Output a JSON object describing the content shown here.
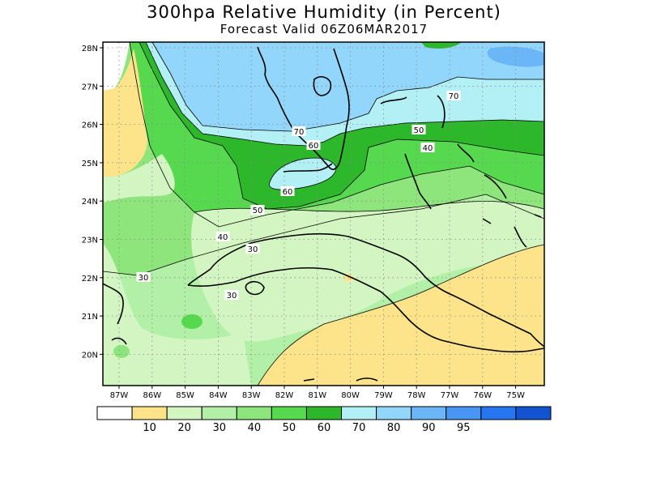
{
  "title": "300hpa Relative Humidity (in Percent)",
  "subtitle": "Forecast Valid  06Z06MAR2017",
  "lat_labels": [
    "28N",
    "27N",
    "26N",
    "25N",
    "24N",
    "23N",
    "22N",
    "21N",
    "20N"
  ],
  "lon_labels": [
    "87W",
    "86W",
    "85W",
    "84W",
    "83W",
    "82W",
    "81W",
    "80W",
    "79W",
    "78W",
    "77W",
    "76W",
    "75W"
  ],
  "contour_labels": [
    {
      "text": "70"
    },
    {
      "text": "70"
    },
    {
      "text": "60"
    },
    {
      "text": "50"
    },
    {
      "text": "40"
    },
    {
      "text": "60"
    },
    {
      "text": "50"
    },
    {
      "text": "40"
    },
    {
      "text": "30"
    },
    {
      "text": "30"
    },
    {
      "text": "30"
    }
  ],
  "colorbar": {
    "colors": [
      "#ffffff",
      "#fde38a",
      "#d2f5c1",
      "#b3f0a7",
      "#8ee57c",
      "#57d94f",
      "#2db82b",
      "#b2f0f6",
      "#92d6fb",
      "#6ab6f7",
      "#4895f4",
      "#2576f0",
      "#1453cf"
    ],
    "labels": [
      "10",
      "20",
      "30",
      "40",
      "50",
      "60",
      "70",
      "80",
      "90",
      "95"
    ]
  }
}
